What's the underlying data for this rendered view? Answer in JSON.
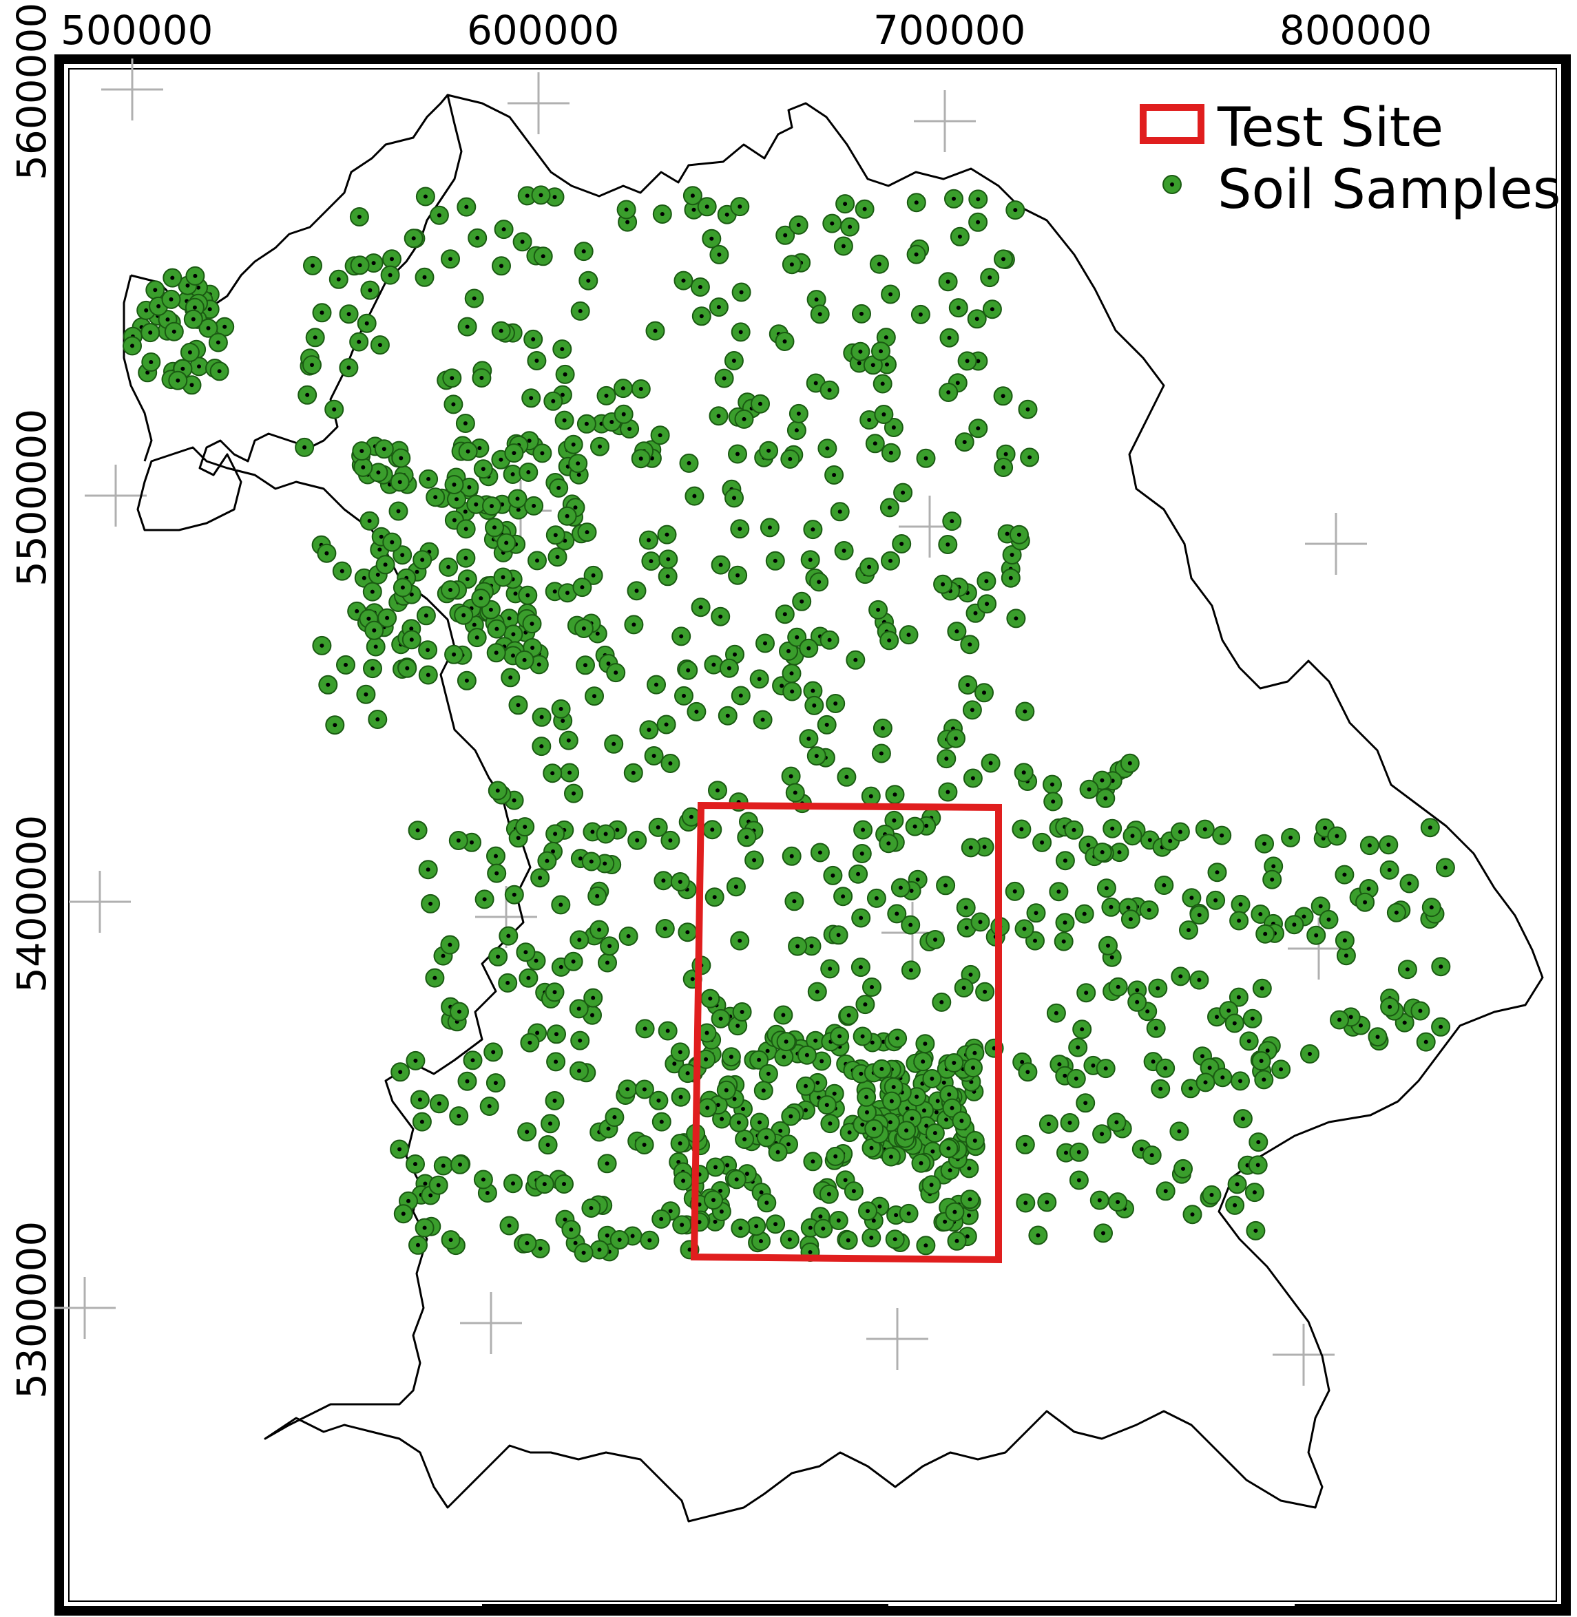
{
  "x_ticks": [
    "500000",
    "600000",
    "700000",
    "800000"
  ],
  "y_ticks": [
    "5600000",
    "5500000",
    "5400000",
    "5300000"
  ],
  "legend": {
    "test_site_label": "Test Site",
    "soil_samples_label": "Soil Samples"
  },
  "colors": {
    "test_site": "#e01e1e",
    "soil_sample_fill": "#3a9e2c",
    "boundary": "#000000",
    "grid_cross": "#b0b0b0"
  },
  "icons": {
    "grid_marker": "plus-cross-icon",
    "sample_marker": "dot-circle-icon"
  }
}
